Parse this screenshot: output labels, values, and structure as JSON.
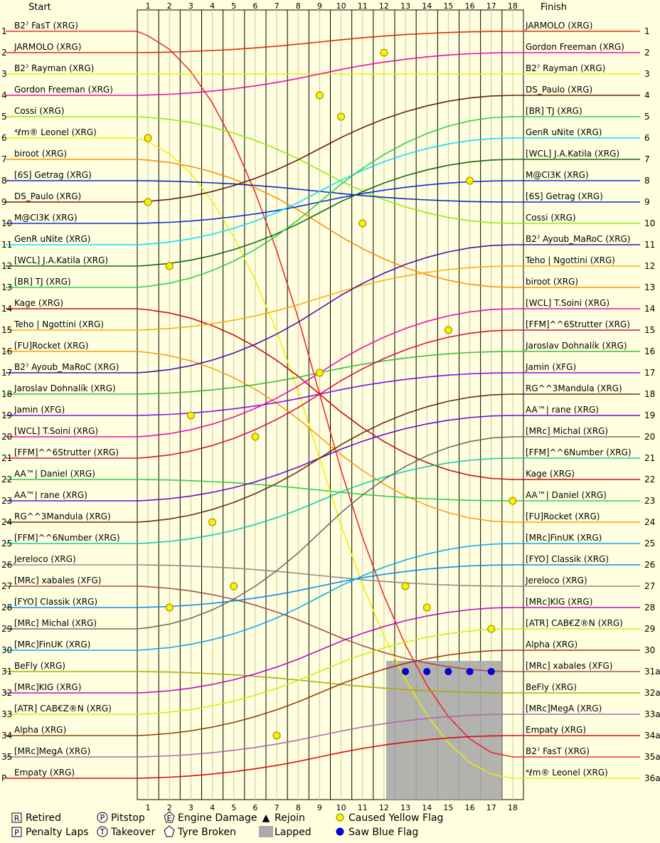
{
  "chart_data": {
    "type": "line",
    "start_header": "Start",
    "finish_header": "Finish",
    "laps": [
      "1",
      "2",
      "3",
      "4",
      "5",
      "6",
      "7",
      "8",
      "9",
      "10",
      "11",
      "12",
      "13",
      "14",
      "15",
      "16",
      "17",
      "18"
    ],
    "positions_left": [
      "1",
      "2",
      "3",
      "4",
      "5",
      "6",
      "7",
      "8",
      "9",
      "10",
      "11",
      "12",
      "13",
      "14",
      "15",
      "16",
      "17",
      "18",
      "19",
      "20",
      "21",
      "22",
      "23",
      "24",
      "25",
      "26",
      "27",
      "28",
      "29",
      "30",
      "31",
      "32",
      "33",
      "34",
      "35",
      "P"
    ],
    "positions_right": [
      "1",
      "2",
      "3",
      "4",
      "5",
      "6",
      "7",
      "8",
      "9",
      "10",
      "11",
      "12",
      "13",
      "14",
      "15",
      "16",
      "17",
      "18",
      "19",
      "20",
      "21",
      "22",
      "23",
      "24",
      "25",
      "26",
      "27",
      "28",
      "29",
      "30",
      "31a",
      "32a",
      "33a",
      "34a",
      "35a",
      "36a"
    ],
    "start_order": [
      {
        "name": "B2ˀ FasT (XRG)",
        "color": "#ee2222"
      },
      {
        "name": "JARMOLO (XRG)",
        "color": "#dd2200"
      },
      {
        "name": "B2ˀ Rayman (XRG)",
        "color": "#eeee00"
      },
      {
        "name": "Gordon Freeman (XRG)",
        "color": "#ee00aa"
      },
      {
        "name": "Cossi (XRG)",
        "color": "#88ee00"
      },
      {
        "name": "⁴ℓm® Leonel (XRG)",
        "color": "#eeee00"
      },
      {
        "name": "biroot (XRG)",
        "color": "#ff8800"
      },
      {
        "name": "[6S] Getrag (XRG)",
        "color": "#0022bb"
      },
      {
        "name": "DS_Paulo (XRG)",
        "color": "#661100"
      },
      {
        "name": "M@Cl3K (XRG)",
        "color": "#0022dd"
      },
      {
        "name": "GenR uNite (XRG)",
        "color": "#00ddff"
      },
      {
        "name": "[WCL] J.A.Katila (XRG)",
        "color": "#006600"
      },
      {
        "name": "[BR] TJ (XRG)",
        "color": "#22cc44"
      },
      {
        "name": "Kage (XRG)",
        "color": "#cc0000"
      },
      {
        "name": "Teho | Ngottini (XRG)",
        "color": "#ffaa00"
      },
      {
        "name": "[FU]Rocket (XRG)",
        "color": "#ff9900"
      },
      {
        "name": "B2ˀ Ayoub_MaRoC (XRG)",
        "color": "#4400aa"
      },
      {
        "name": "Jaroslav Dohnalík (XRG)",
        "color": "#33bb33"
      },
      {
        "name": "Jamin (XFG)",
        "color": "#8800ee"
      },
      {
        "name": "[WCL] T.Soini (XRG)",
        "color": "#ee00aa"
      },
      {
        "name": "[FFM]^^6Strutter (XRG)",
        "color": "#dd0044"
      },
      {
        "name": "AA™| Daniel (XRG)",
        "color": "#22cc44"
      },
      {
        "name": "AA™| rane (XRG)",
        "color": "#6600cc"
      },
      {
        "name": "RG^^3Mandula (XRG)",
        "color": "#662200"
      },
      {
        "name": "[FFM]^^6Number (XRG)",
        "color": "#00ccaa"
      },
      {
        "name": "Jereloco (XRG)",
        "color": "#888888"
      },
      {
        "name": "[MRc] xabales (XFG)",
        "color": "#aa4444"
      },
      {
        "name": "[FYO] Classik (XRG)",
        "color": "#0088ee"
      },
      {
        "name": "[MRc] Michal (XRG)",
        "color": "#666666"
      },
      {
        "name": "[MRc]FinUK (XRG)",
        "color": "#00aaee"
      },
      {
        "name": "BeFly (XRG)",
        "color": "#aaaa00"
      },
      {
        "name": "[MRc]KIG (XRG)",
        "color": "#bb00bb"
      },
      {
        "name": "[ATR] CAB€Z®N (XRG)",
        "color": "#ccee00"
      },
      {
        "name": "Alpha (XRG)",
        "color": "#993300"
      },
      {
        "name": "[MRc]MegA (XRG)",
        "color": "#aa66aa"
      },
      {
        "name": "Empaty (XRG)",
        "color": "#dd0000"
      }
    ],
    "finish_order": [
      {
        "name": "JARMOLO (XRG)",
        "color": "#dd2200"
      },
      {
        "name": "Gordon Freeman (XRG)",
        "color": "#ee00aa"
      },
      {
        "name": "B2ˀ Rayman (XRG)",
        "color": "#eeee00"
      },
      {
        "name": "DS_Paulo (XRG)",
        "color": "#661100"
      },
      {
        "name": "[BR] TJ (XRG)",
        "color": "#22cc44"
      },
      {
        "name": "GenR uNite (XRG)",
        "color": "#00ddff"
      },
      {
        "name": "[WCL] J.A.Katila (XRG)",
        "color": "#006600"
      },
      {
        "name": "M@Cl3K (XRG)",
        "color": "#0022dd"
      },
      {
        "name": "[6S] Getrag (XRG)",
        "color": "#0022bb"
      },
      {
        "name": "Cossi (XRG)",
        "color": "#88ee00"
      },
      {
        "name": "B2ˀ Ayoub_MaRoC (XRG)",
        "color": "#4400aa"
      },
      {
        "name": "Teho | Ngottini (XRG)",
        "color": "#ffaa00"
      },
      {
        "name": "biroot (XRG)",
        "color": "#ff8800"
      },
      {
        "name": "[WCL] T.Soini (XRG)",
        "color": "#ee00aa"
      },
      {
        "name": "[FFM]^^6Strutter (XRG)",
        "color": "#dd0044"
      },
      {
        "name": "Jaroslav Dohnalík (XRG)",
        "color": "#33bb33"
      },
      {
        "name": "Jamin (XFG)",
        "color": "#8800ee"
      },
      {
        "name": "RG^^3Mandula (XRG)",
        "color": "#662200"
      },
      {
        "name": "AA™| rane (XRG)",
        "color": "#6600cc"
      },
      {
        "name": "[MRc] Michal (XRG)",
        "color": "#666666"
      },
      {
        "name": "[FFM]^^6Number (XRG)",
        "color": "#00ccaa"
      },
      {
        "name": "Kage (XRG)",
        "color": "#cc0000"
      },
      {
        "name": "AA™| Daniel (XRG)",
        "color": "#22cc44"
      },
      {
        "name": "[FU]Rocket (XRG)",
        "color": "#ff9900"
      },
      {
        "name": "[MRc]FinUK (XRG)",
        "color": "#00aaee"
      },
      {
        "name": "[FYO] Classik (XRG)",
        "color": "#0088ee"
      },
      {
        "name": "Jereloco (XRG)",
        "color": "#888888"
      },
      {
        "name": "[MRc]KIG (XRG)",
        "color": "#bb00bb"
      },
      {
        "name": "[ATR] CAB€Z®N (XRG)",
        "color": "#ccee00"
      },
      {
        "name": "Alpha (XRG)",
        "color": "#993300"
      },
      {
        "name": "[MRc] xabales (XFG)",
        "color": "#aa4444"
      },
      {
        "name": "BeFly (XRG)",
        "color": "#aaaa00"
      },
      {
        "name": "[MRc]MegA (XRG)",
        "color": "#aa66aa"
      },
      {
        "name": "Empaty (XRG)",
        "color": "#dd0000"
      },
      {
        "name": "B2ˀ FasT (XRG)",
        "color": "#ee2222"
      },
      {
        "name": "⁴ℓm® Leonel (XRG)",
        "color": "#eeee00"
      }
    ],
    "lapped_from_lap": 13,
    "legend": [
      {
        "symbol": "R",
        "label": "Retired",
        "shape": "box"
      },
      {
        "symbol": "P",
        "label": "Penalty Laps",
        "shape": "box"
      },
      {
        "symbol": "P",
        "label": "Pitstop",
        "shape": "circle"
      },
      {
        "symbol": "T",
        "label": "Takeover",
        "shape": "circle"
      },
      {
        "symbol": "E",
        "label": "Engine Damage",
        "shape": "pentagon"
      },
      {
        "symbol": "",
        "label": "Tyre Broken",
        "shape": "pentagon"
      },
      {
        "symbol": "▲",
        "label": "Rejoin",
        "shape": "text"
      },
      {
        "symbol": "",
        "label": "Lapped",
        "shape": "grey"
      },
      {
        "symbol": "",
        "label": "Caused Yellow Flag",
        "shape": "yellow-dot"
      },
      {
        "symbol": "",
        "label": "Saw Blue Flag",
        "shape": "blue-dot"
      }
    ]
  }
}
